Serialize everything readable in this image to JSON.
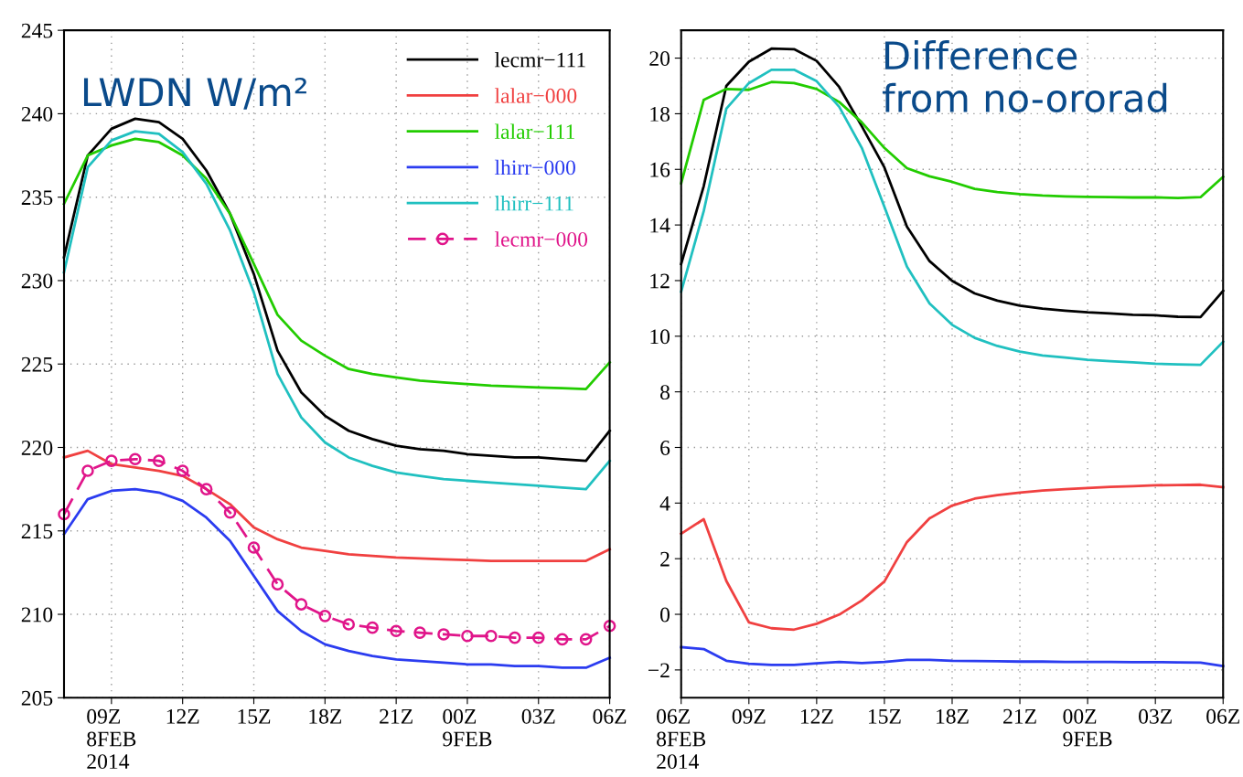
{
  "chart_data": [
    {
      "type": "line",
      "title": "LWDN W/m²",
      "x": [
        "2014-02-08T07:00",
        "2014-02-08T08:00",
        "2014-02-08T09:00",
        "2014-02-08T10:00",
        "2014-02-08T11:00",
        "2014-02-08T12:00",
        "2014-02-08T13:00",
        "2014-02-08T14:00",
        "2014-02-08T15:00",
        "2014-02-08T16:00",
        "2014-02-08T17:00",
        "2014-02-08T18:00",
        "2014-02-08T19:00",
        "2014-02-08T20:00",
        "2014-02-08T21:00",
        "2014-02-08T22:00",
        "2014-02-08T23:00",
        "2014-02-09T00:00",
        "2014-02-09T01:00",
        "2014-02-09T02:00",
        "2014-02-09T03:00",
        "2014-02-09T04:00",
        "2014-02-09T05:00",
        "2014-02-09T06:00"
      ],
      "xlim": [
        "2014-02-08T07:00",
        "2014-02-09T06:00"
      ],
      "xticks": [
        {
          "value": "2014-02-08T09:00",
          "label": "09Z\n8FEB\n2014"
        },
        {
          "value": "2014-02-08T12:00",
          "label": "12Z"
        },
        {
          "value": "2014-02-08T15:00",
          "label": "15Z"
        },
        {
          "value": "2014-02-08T18:00",
          "label": "18Z"
        },
        {
          "value": "2014-02-08T21:00",
          "label": "21Z"
        },
        {
          "value": "2014-02-09T00:00",
          "label": "00Z\n9FEB"
        },
        {
          "value": "2014-02-09T03:00",
          "label": "03Z"
        },
        {
          "value": "2014-02-09T06:00",
          "label": "06Z"
        }
      ],
      "ylim": [
        205,
        245
      ],
      "yticks": [
        205,
        210,
        215,
        220,
        225,
        230,
        235,
        240,
        245
      ],
      "grid": true,
      "legend": "top right",
      "line_style": "solid",
      "marker": "none",
      "series": [
        {
          "name": "lecmr−111",
          "color": "#000000",
          "values": [
            231.4,
            237.5,
            239.1,
            239.7,
            239.5,
            238.5,
            236.6,
            234.0,
            230.4,
            225.8,
            223.3,
            221.9,
            221.0,
            220.5,
            220.1,
            219.9,
            219.8,
            219.6,
            219.5,
            219.4,
            219.4,
            219.3,
            219.2,
            221.0
          ]
        },
        {
          "name": "lalar−000",
          "color": "#f04040",
          "values": [
            219.4,
            219.8,
            219.0,
            218.8,
            218.6,
            218.3,
            217.5,
            216.6,
            215.2,
            214.5,
            214.0,
            213.8,
            213.6,
            213.5,
            213.4,
            213.35,
            213.3,
            213.25,
            213.2,
            213.2,
            213.2,
            213.2,
            213.2,
            213.9
          ]
        },
        {
          "name": "lalar−111",
          "color": "#22cc00",
          "values": [
            234.6,
            237.5,
            238.1,
            238.5,
            238.3,
            237.5,
            236.1,
            234.0,
            231.0,
            227.95,
            226.4,
            225.5,
            224.7,
            224.4,
            224.2,
            224.0,
            223.9,
            223.8,
            223.7,
            223.65,
            223.6,
            223.55,
            223.5,
            225.1
          ]
        },
        {
          "name": "lhirr−000",
          "color": "#2b3cf0",
          "values": [
            214.8,
            216.9,
            217.4,
            217.5,
            217.3,
            216.8,
            215.8,
            214.4,
            212.3,
            210.2,
            209.0,
            208.2,
            207.8,
            207.5,
            207.3,
            207.2,
            207.1,
            207.0,
            207.0,
            206.9,
            206.9,
            206.8,
            206.8,
            207.4
          ]
        },
        {
          "name": "lhirr−111",
          "color": "#20c0c0",
          "values": [
            230.5,
            236.8,
            238.4,
            238.95,
            238.8,
            237.7,
            235.8,
            233.0,
            229.3,
            224.4,
            221.8,
            220.3,
            219.4,
            218.9,
            218.5,
            218.3,
            218.1,
            218.0,
            217.9,
            217.8,
            217.7,
            217.6,
            217.5,
            219.2
          ]
        },
        {
          "name": "lecmr−000",
          "color": "#e0158a",
          "marker": "circle",
          "line_style": "dashed",
          "values": [
            216.0,
            218.6,
            219.2,
            219.3,
            219.2,
            218.6,
            217.5,
            216.1,
            214.0,
            211.8,
            210.6,
            209.9,
            209.4,
            209.2,
            209.0,
            208.9,
            208.8,
            208.7,
            208.7,
            208.6,
            208.6,
            208.5,
            208.5,
            209.3
          ]
        }
      ]
    },
    {
      "type": "line",
      "title": "Difference\nfrom no-ororad",
      "x": [
        "2014-02-08T06:00",
        "2014-02-08T07:00",
        "2014-02-08T08:00",
        "2014-02-08T09:00",
        "2014-02-08T10:00",
        "2014-02-08T11:00",
        "2014-02-08T12:00",
        "2014-02-08T13:00",
        "2014-02-08T14:00",
        "2014-02-08T15:00",
        "2014-02-08T16:00",
        "2014-02-08T17:00",
        "2014-02-08T18:00",
        "2014-02-08T19:00",
        "2014-02-08T20:00",
        "2014-02-08T21:00",
        "2014-02-08T22:00",
        "2014-02-08T23:00",
        "2014-02-09T00:00",
        "2014-02-09T01:00",
        "2014-02-09T02:00",
        "2014-02-09T03:00",
        "2014-02-09T04:00",
        "2014-02-09T05:00",
        "2014-02-09T06:00"
      ],
      "xlim": [
        "2014-02-08T06:00",
        "2014-02-09T06:00"
      ],
      "xticks": [
        {
          "value": "2014-02-08T06:00",
          "label": "06Z\n8FEB\n2014"
        },
        {
          "value": "2014-02-08T09:00",
          "label": "09Z"
        },
        {
          "value": "2014-02-08T12:00",
          "label": "12Z"
        },
        {
          "value": "2014-02-08T15:00",
          "label": "15Z"
        },
        {
          "value": "2014-02-08T18:00",
          "label": "18Z"
        },
        {
          "value": "2014-02-08T21:00",
          "label": "21Z"
        },
        {
          "value": "2014-02-09T00:00",
          "label": "00Z\n9FEB"
        },
        {
          "value": "2014-02-09T03:00",
          "label": "03Z"
        },
        {
          "value": "2014-02-09T06:00",
          "label": "06Z"
        }
      ],
      "ylim": [
        -3,
        21
      ],
      "yticks": [
        {
          "value": -2,
          "label": "−2"
        },
        0,
        2,
        4,
        6,
        8,
        10,
        12,
        14,
        16,
        18,
        20
      ],
      "grid": true,
      "legend": false,
      "line_style": "solid",
      "marker": "none",
      "series": [
        {
          "color": "#000000",
          "values": [
            12.6,
            15.4,
            19.0,
            19.87,
            20.34,
            20.32,
            19.9,
            18.96,
            17.55,
            16.07,
            13.94,
            12.7,
            11.99,
            11.54,
            11.28,
            11.1,
            10.99,
            10.92,
            10.86,
            10.82,
            10.77,
            10.75,
            10.7,
            10.69,
            11.63
          ]
        },
        {
          "color": "#f04040",
          "values": [
            2.9,
            3.42,
            1.2,
            -0.29,
            -0.5,
            -0.55,
            -0.34,
            -0.01,
            0.5,
            1.18,
            2.6,
            3.45,
            3.91,
            4.16,
            4.29,
            4.38,
            4.45,
            4.5,
            4.54,
            4.58,
            4.61,
            4.64,
            4.65,
            4.66,
            4.57
          ]
        },
        {
          "color": "#22cc00",
          "values": [
            15.5,
            18.5,
            18.89,
            18.86,
            19.14,
            19.1,
            18.89,
            18.42,
            17.69,
            16.77,
            16.04,
            15.75,
            15.55,
            15.3,
            15.18,
            15.11,
            15.06,
            15.03,
            15.01,
            15.0,
            14.99,
            14.99,
            14.97,
            15.0,
            15.73
          ]
        },
        {
          "color": "#2b3cf0",
          "values": [
            -1.18,
            -1.25,
            -1.67,
            -1.78,
            -1.82,
            -1.82,
            -1.76,
            -1.71,
            -1.75,
            -1.71,
            -1.64,
            -1.64,
            -1.67,
            -1.68,
            -1.69,
            -1.7,
            -1.7,
            -1.71,
            -1.71,
            -1.71,
            -1.72,
            -1.72,
            -1.73,
            -1.74,
            -1.86
          ]
        },
        {
          "color": "#20c0c0",
          "values": [
            11.6,
            14.5,
            18.18,
            19.1,
            19.58,
            19.58,
            19.17,
            18.25,
            16.77,
            14.65,
            12.5,
            11.18,
            10.41,
            9.94,
            9.65,
            9.45,
            9.31,
            9.23,
            9.15,
            9.1,
            9.06,
            9.01,
            8.99,
            8.97,
            9.8
          ]
        }
      ]
    }
  ]
}
